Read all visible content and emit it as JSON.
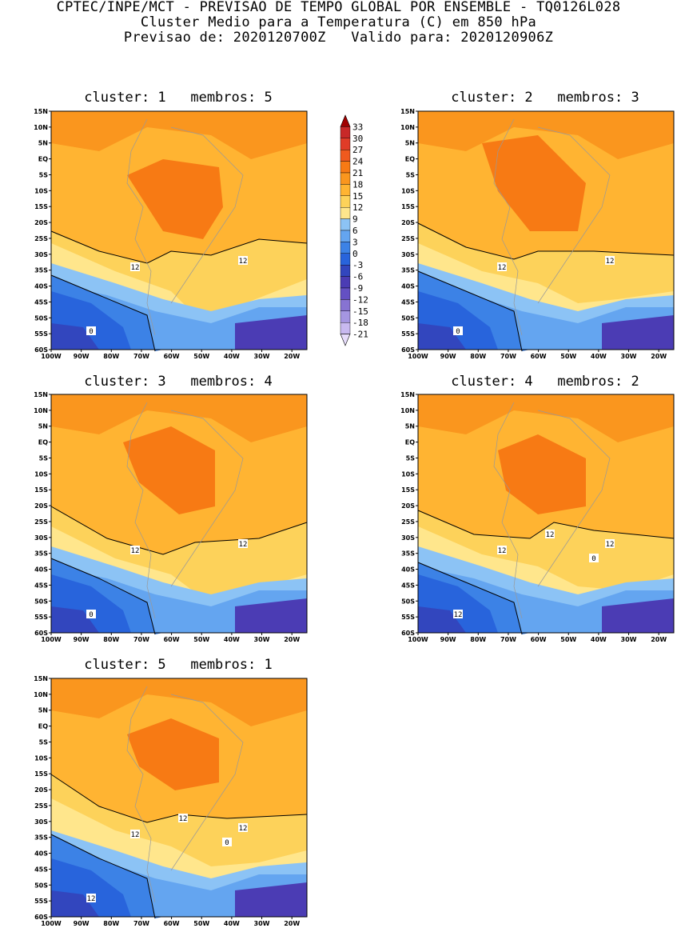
{
  "header": {
    "line1": "CPTEC/INPE/MCT - PREVISAO DE TEMPO GLOBAL POR ENSEMBLE - TQ0126L028",
    "line2": "Cluster Medio para a Temperatura (C) em 850 hPa",
    "line3": "Previsao de: 2020120700Z   Valido para: 2020120906Z"
  },
  "colorbar": {
    "levels": [
      "33",
      "30",
      "27",
      "24",
      "21",
      "18",
      "15",
      "12",
      "9",
      "6",
      "3",
      "0",
      "-3",
      "-6",
      "-9",
      "-12",
      "-15",
      "-18",
      "-21"
    ],
    "colors": [
      "#a00000",
      "#c82828",
      "#e03c28",
      "#f05a1e",
      "#f77a14",
      "#fa961e",
      "#ffb432",
      "#fdd25a",
      "#ffe68c",
      "#8cc3f5",
      "#64a5f0",
      "#3c82e6",
      "#2864dc",
      "#3246be",
      "#4b3cb4",
      "#6450c3",
      "#8773d2",
      "#a596e1",
      "#c8b9f0",
      "#e6dcfa"
    ]
  },
  "axes": {
    "lat_ticks": [
      "15N",
      "10N",
      "5N",
      "EQ",
      "5S",
      "10S",
      "15S",
      "20S",
      "25S",
      "30S",
      "35S",
      "40S",
      "45S",
      "50S",
      "55S",
      "60S"
    ],
    "lon_ticks": [
      "100W",
      "90W",
      "80W",
      "70W",
      "60W",
      "50W",
      "40W",
      "30W",
      "20W"
    ]
  },
  "panels": [
    {
      "title": "cluster: 1   membros: 5",
      "labels": [
        "12",
        "12",
        "0"
      ]
    },
    {
      "title": "cluster: 2   membros: 3",
      "labels": [
        "12",
        "12",
        "0"
      ]
    },
    {
      "title": "cluster: 3   membros: 4",
      "labels": [
        "12",
        "12",
        "0"
      ]
    },
    {
      "title": "cluster: 4   membros: 2",
      "labels": [
        "12",
        "12",
        "12",
        "12",
        "0"
      ]
    },
    {
      "title": "cluster: 5   membros: 1",
      "labels": [
        "12",
        "12",
        "12",
        "12",
        "0"
      ]
    }
  ]
}
